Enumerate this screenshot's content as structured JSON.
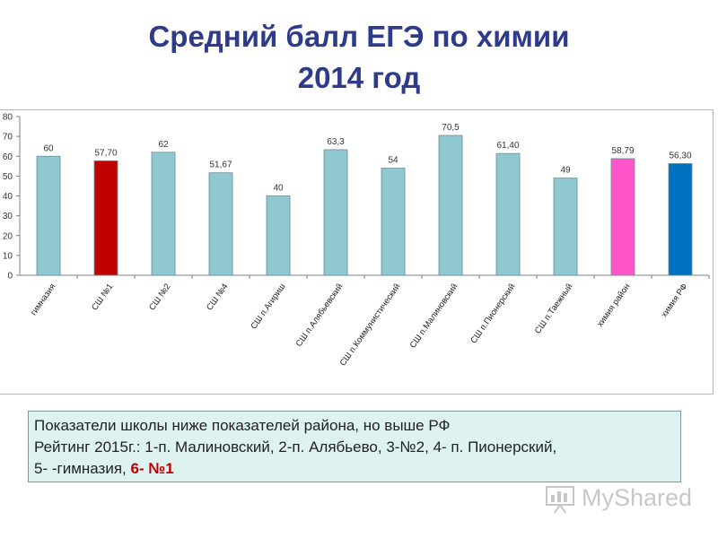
{
  "title": {
    "line1": "Средний балл ЕГЭ по химии",
    "line2": "2014 год",
    "color": "#2e3b8a"
  },
  "chart_data": {
    "type": "bar",
    "categories": [
      "гимназия",
      "СШ №1",
      "СШ №2",
      "СШ №4",
      "СШ п.Агириш",
      "СШ п.Алябьевский",
      "СШ п.Коммунистический",
      "СШ п.Малиновский",
      "СШ п.Пионерский",
      "СШ п.Таежный",
      "химия район",
      "химия РФ"
    ],
    "values": [
      60,
      57.7,
      62,
      51.67,
      40,
      63.3,
      54,
      70.5,
      61.4,
      49,
      58.79,
      56.3
    ],
    "data_labels": [
      "60",
      "57,70",
      "62",
      "51,67",
      "40",
      "63,3",
      "54",
      "70,5",
      "61,40",
      "49",
      "58,79",
      "56,30"
    ],
    "colors": [
      "#8fc8d0",
      "#c00000",
      "#8fc8d0",
      "#8fc8d0",
      "#8fc8d0",
      "#8fc8d0",
      "#8fc8d0",
      "#8fc8d0",
      "#8fc8d0",
      "#8fc8d0",
      "#ff55c8",
      "#0070c0"
    ],
    "ylim": [
      0,
      80
    ],
    "yticks": [
      "0",
      "10",
      "20",
      "30",
      "40",
      "50",
      "60",
      "70",
      "80"
    ],
    "grid": false,
    "legend": "none"
  },
  "info": {
    "line1": "Показатели школы ниже показателей района, но выше РФ",
    "line2": "Рейтинг 2015г.: 1-п. Малиновский, 2-п. Алябьево, 3-№2, 4- п. Пионерский,",
    "line3_prefix": "5- -гимназия, ",
    "line3_highlight": "6- №1"
  },
  "watermark": {
    "text": "MyShared"
  }
}
